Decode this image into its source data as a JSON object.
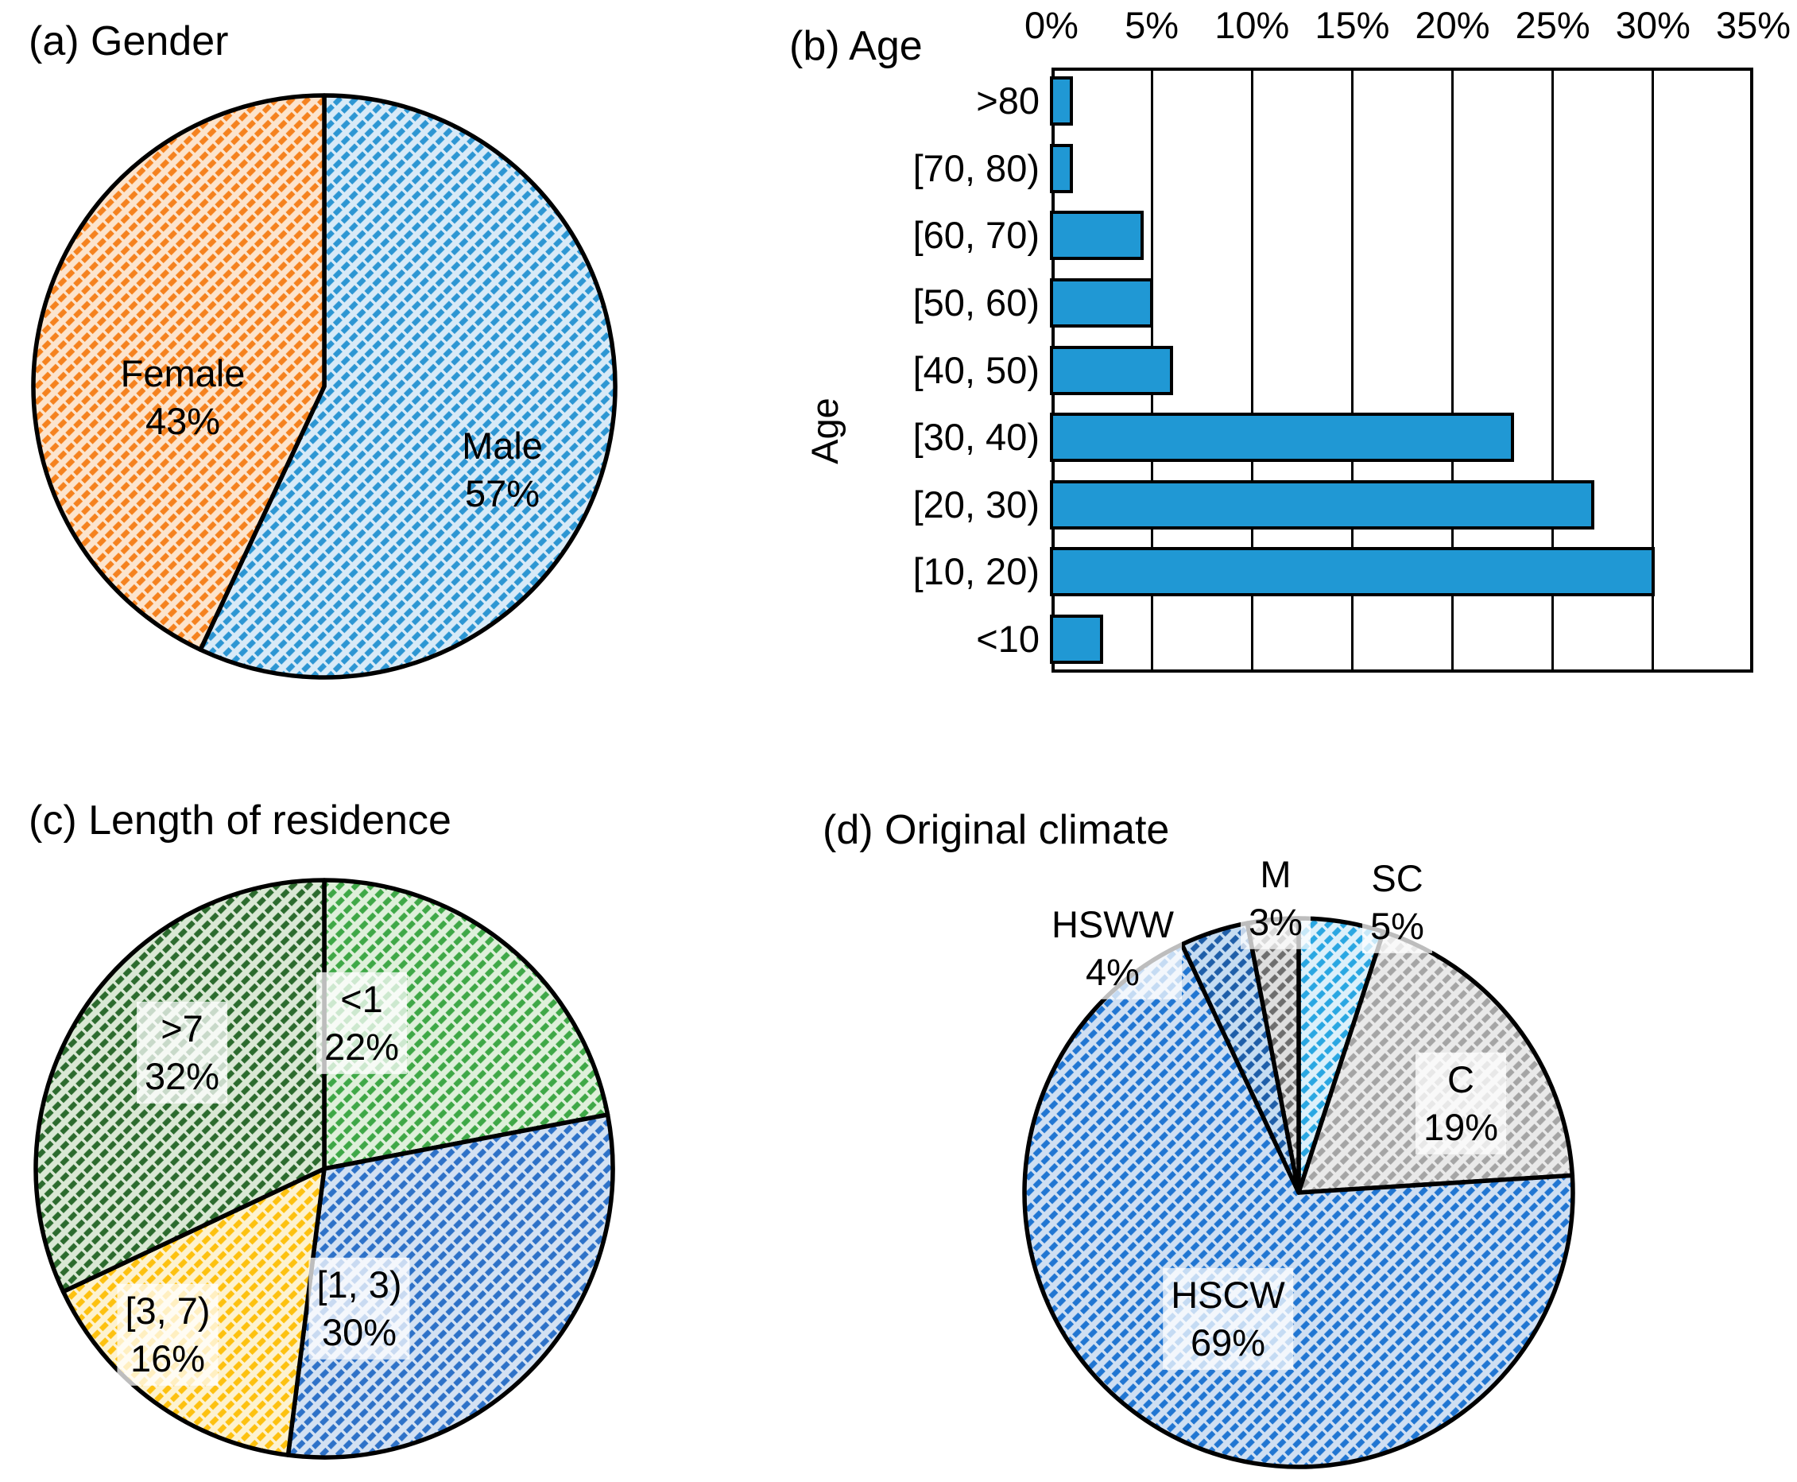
{
  "panels": {
    "a": {
      "title": "(a) Gender"
    },
    "b": {
      "title": "(b) Age",
      "y_axis_label": "Age"
    },
    "c": {
      "title": "(c) Length of residence"
    },
    "d": {
      "title": "(d) Original climate"
    }
  },
  "chart_data": [
    {
      "id": "gender",
      "panel": "a",
      "type": "pie",
      "title": "(a) Gender",
      "start_angle": "top",
      "direction": "clockwise",
      "slices": [
        {
          "label": "Male",
          "value_pct": 57,
          "pct_label": "57%",
          "bg_color": "#d8eaf7",
          "hatch_color": "#2d96d3",
          "label_placement": "inside",
          "label_box": false
        },
        {
          "label": "Female",
          "value_pct": 43,
          "pct_label": "43%",
          "bg_color": "#fce4cd",
          "hatch_color": "#f5821f",
          "label_placement": "inside",
          "label_box": false
        }
      ]
    },
    {
      "id": "age",
      "panel": "b",
      "type": "bar",
      "title": "(b) Age",
      "orientation": "horizontal",
      "ylabel": "Age",
      "categories": [
        ">80",
        "[70, 80)",
        "[60, 70)",
        "[50, 60)",
        "[40, 50)",
        "[30, 40)",
        "[20, 30)",
        "[10, 20)",
        "<10"
      ],
      "values_pct": [
        1,
        1,
        4.5,
        5,
        6,
        23,
        27,
        30,
        2.5
      ],
      "x_ticks": [
        "0%",
        "5%",
        "10%",
        "15%",
        "20%",
        "25%",
        "30%",
        "35%"
      ],
      "xlim_pct": [
        0,
        35
      ],
      "grid": true,
      "bar_fill": "#2098d4",
      "bar_border": "#000000"
    },
    {
      "id": "residence",
      "panel": "c",
      "type": "pie",
      "title": "(c) Length of residence",
      "start_angle": "top",
      "direction": "clockwise",
      "slices": [
        {
          "label": "<1",
          "value_pct": 22,
          "pct_label": "22%",
          "bg_color": "#def0da",
          "hatch_color": "#3fa847",
          "label_placement": "inside",
          "label_box": true
        },
        {
          "label": "[1, 3)",
          "value_pct": 30,
          "pct_label": "30%",
          "bg_color": "#d3e1f2",
          "hatch_color": "#2e72c8",
          "label_placement": "inside",
          "label_box": true
        },
        {
          "label": "[3, 7)",
          "value_pct": 16,
          "pct_label": "16%",
          "bg_color": "#fdf2cf",
          "hatch_color": "#fdc110",
          "label_placement": "inside",
          "label_box": true
        },
        {
          "label": ">7",
          "value_pct": 32,
          "pct_label": "32%",
          "bg_color": "#d9e8d4",
          "hatch_color": "#2c6b2e",
          "label_placement": "inside",
          "label_box": true
        }
      ]
    },
    {
      "id": "climate",
      "panel": "d",
      "type": "pie",
      "title": "(d) Original climate",
      "start_angle": "top",
      "direction": "clockwise",
      "slices": [
        {
          "label": "SC",
          "value_pct": 5,
          "pct_label": "5%",
          "bg_color": "#dcf0fa",
          "hatch_color": "#2aa7e2",
          "label_placement": "outside",
          "label_box": true
        },
        {
          "label": "C",
          "value_pct": 19,
          "pct_label": "19%",
          "bg_color": "#e9e9e9",
          "hatch_color": "#a5a5a5",
          "label_placement": "inside",
          "label_box": true
        },
        {
          "label": "HSCW",
          "value_pct": 69,
          "pct_label": "69%",
          "bg_color": "#cfdff2",
          "hatch_color": "#2176d2",
          "label_placement": "inside",
          "label_box": true
        },
        {
          "label": "HSWW",
          "value_pct": 4,
          "pct_label": "4%",
          "bg_color": "#c5dcf1",
          "hatch_color": "#1f5fa9",
          "label_placement": "outside",
          "label_box": true
        },
        {
          "label": "M",
          "value_pct": 3,
          "pct_label": "3%",
          "bg_color": "#dedede",
          "hatch_color": "#6e6e6e",
          "label_placement": "outside",
          "label_box": true
        }
      ]
    }
  ]
}
